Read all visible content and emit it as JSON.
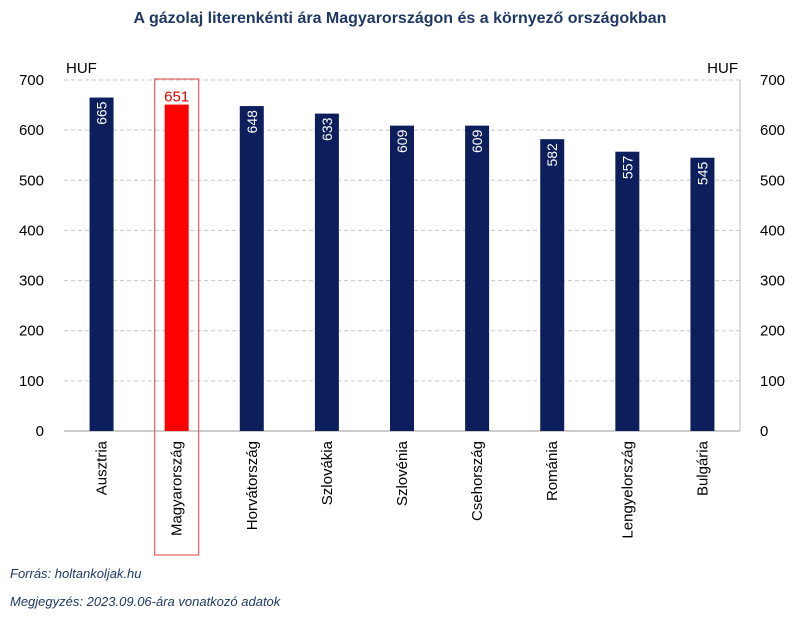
{
  "chart_data": {
    "type": "bar",
    "title": "A gázolaj literenkénti ára Magyarországon és a környező országokban",
    "unit_left": "HUF",
    "unit_right": "HUF",
    "categories": [
      "Ausztria",
      "Magyarország",
      "Horvátország",
      "Szlovákia",
      "Szlovénia",
      "Csehország",
      "Románia",
      "Lengyelország",
      "Bulgária"
    ],
    "values": [
      665,
      651,
      648,
      633,
      609,
      609,
      582,
      557,
      545
    ],
    "ylim": [
      0,
      700
    ],
    "yticks": [
      0,
      100,
      200,
      300,
      400,
      500,
      600,
      700
    ],
    "highlight_category": "Magyarország",
    "colors": {
      "bar": "#0c1f5c",
      "highlight": "#ff0000",
      "highlight_label": "#e00000",
      "highlight_box": "#e06060",
      "grid": "#c8c8c8",
      "title": "#1f3864"
    },
    "grid": true
  },
  "notes": {
    "source": "Forrás: holtankoljak.hu",
    "remark": "Megjegyzés: 2023.09.06-ára vonatkozó adatok"
  }
}
